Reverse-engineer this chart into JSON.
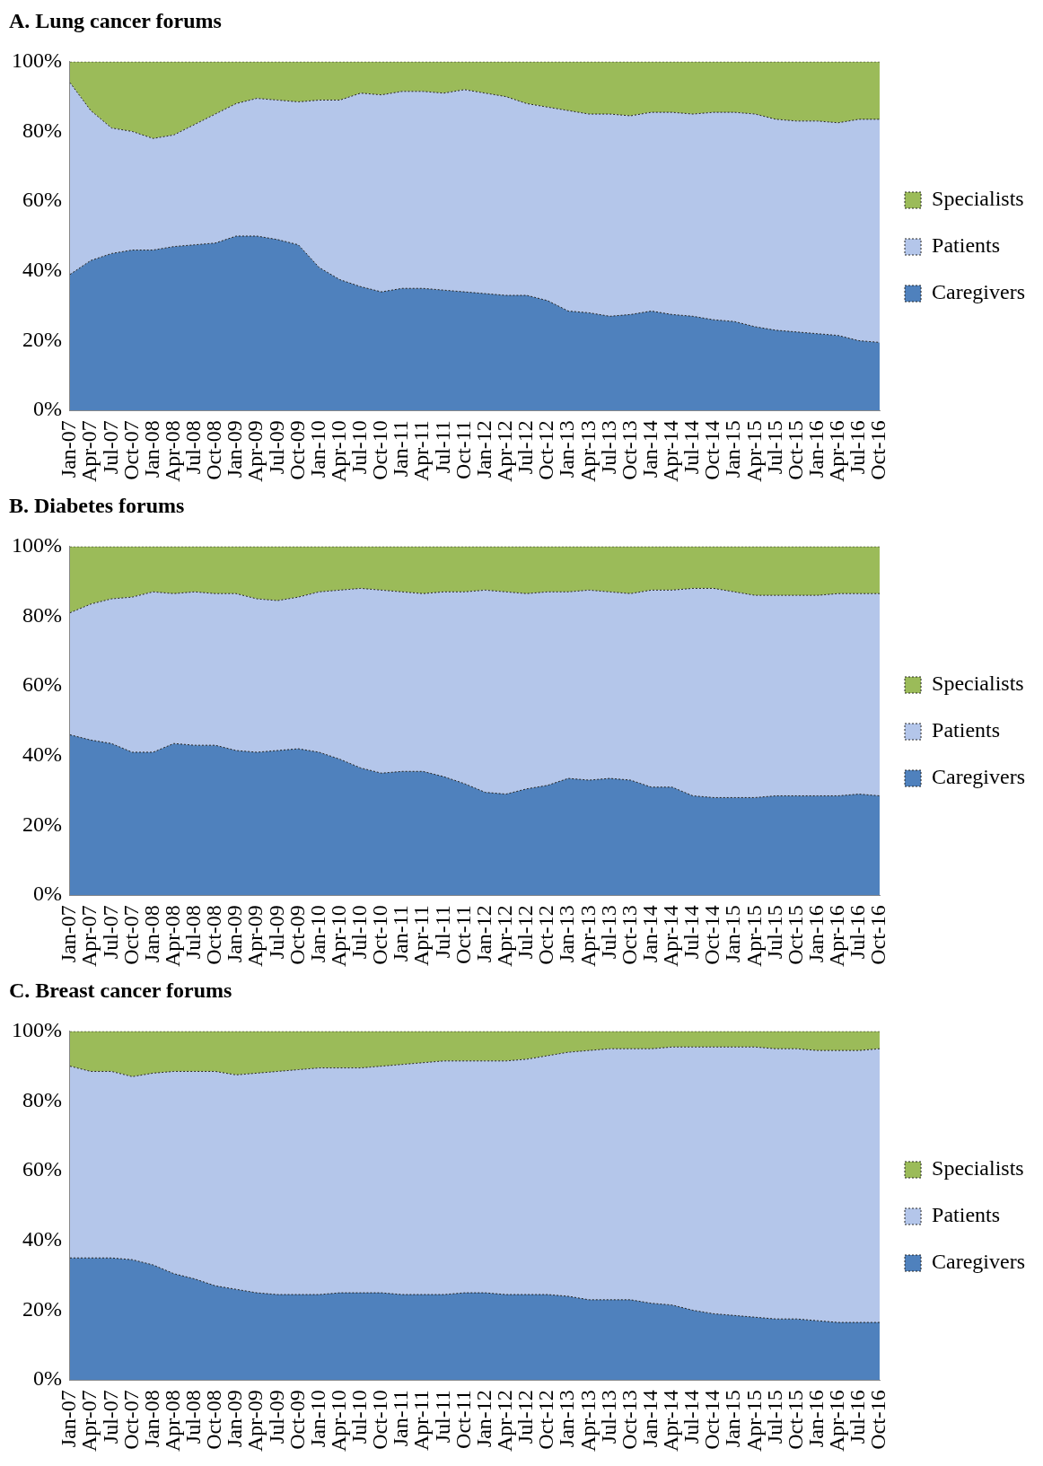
{
  "chart_data": [
    {
      "type": "area",
      "title": "A. Lung cancer forums",
      "stacked": true,
      "legend": "right",
      "categories": [
        "Jan-07",
        "Apr-07",
        "Jul-07",
        "Oct-07",
        "Jan-08",
        "Apr-08",
        "Jul-08",
        "Oct-08",
        "Jan-09",
        "Apr-09",
        "Jul-09",
        "Oct-09",
        "Jan-10",
        "Apr-10",
        "Jul-10",
        "Oct-10",
        "Jan-11",
        "Apr-11",
        "Jul-11",
        "Oct-11",
        "Jan-12",
        "Apr-12",
        "Jul-12",
        "Oct-12",
        "Jan-13",
        "Apr-13",
        "Jul-13",
        "Oct-13",
        "Jan-14",
        "Apr-14",
        "Jul-14",
        "Oct-14",
        "Jan-15",
        "Apr-15",
        "Jul-15",
        "Oct-15",
        "Jan-16",
        "Apr-16",
        "Jul-16",
        "Oct-16"
      ],
      "ylim": [
        0,
        100
      ],
      "yticks": [
        {
          "value": 0,
          "label": "0%"
        },
        {
          "value": 20,
          "label": "20%"
        },
        {
          "value": 40,
          "label": "40%"
        },
        {
          "value": 60,
          "label": "60%"
        },
        {
          "value": 80,
          "label": "80%"
        },
        {
          "value": 100,
          "label": "100%"
        }
      ],
      "series": [
        {
          "name": "Caregivers",
          "color": "#4f81bd",
          "values": [
            39,
            43,
            45,
            46,
            46,
            47,
            47.5,
            48,
            50,
            50,
            49,
            47.5,
            41,
            37.5,
            35.5,
            34,
            35,
            35,
            34.5,
            34,
            33.5,
            33,
            33,
            31.5,
            28.5,
            28,
            27,
            27.5,
            28.5,
            27.5,
            27,
            26,
            25.5,
            24,
            23,
            22.5,
            22,
            21.5,
            20,
            19.5
          ]
        },
        {
          "name": "Patients",
          "color": "#b4c6ea",
          "values": [
            55,
            43,
            36,
            34,
            32,
            32,
            34.5,
            37,
            38,
            39.5,
            40,
            41,
            48,
            51.5,
            55.5,
            56.5,
            56.5,
            56.5,
            56.5,
            58,
            57.5,
            57,
            55,
            55.5,
            57.5,
            57,
            58,
            57,
            57,
            58,
            58,
            59.5,
            60,
            61,
            60.5,
            60.5,
            61,
            61,
            63.5,
            64
          ]
        },
        {
          "name": "Specialists",
          "color": "#9bbb59",
          "values": [
            6,
            14,
            19,
            20,
            22,
            21,
            18,
            15,
            12,
            10.5,
            11,
            11.5,
            11,
            11,
            9,
            9.5,
            8.5,
            8.5,
            9,
            8,
            9,
            10,
            12,
            13,
            14,
            15,
            15,
            15.5,
            14.5,
            14.5,
            15,
            14.5,
            14.5,
            15,
            16.5,
            17,
            17,
            17.5,
            16.5,
            16.5
          ]
        }
      ]
    },
    {
      "type": "area",
      "title": "B. Diabetes forums",
      "stacked": true,
      "legend": "right",
      "categories": [
        "Jan-07",
        "Apr-07",
        "Jul-07",
        "Oct-07",
        "Jan-08",
        "Apr-08",
        "Jul-08",
        "Oct-08",
        "Jan-09",
        "Apr-09",
        "Jul-09",
        "Oct-09",
        "Jan-10",
        "Apr-10",
        "Jul-10",
        "Oct-10",
        "Jan-11",
        "Apr-11",
        "Jul-11",
        "Oct-11",
        "Jan-12",
        "Apr-12",
        "Jul-12",
        "Oct-12",
        "Jan-13",
        "Apr-13",
        "Jul-13",
        "Oct-13",
        "Jan-14",
        "Apr-14",
        "Jul-14",
        "Oct-14",
        "Jan-15",
        "Apr-15",
        "Jul-15",
        "Oct-15",
        "Jan-16",
        "Apr-16",
        "Jul-16",
        "Oct-16"
      ],
      "ylim": [
        0,
        100
      ],
      "yticks": [
        {
          "value": 0,
          "label": "0%"
        },
        {
          "value": 20,
          "label": "20%"
        },
        {
          "value": 40,
          "label": "40%"
        },
        {
          "value": 60,
          "label": "60%"
        },
        {
          "value": 80,
          "label": "80%"
        },
        {
          "value": 100,
          "label": "100%"
        }
      ],
      "series": [
        {
          "name": "Caregivers",
          "color": "#4f81bd",
          "values": [
            46,
            44.5,
            43.5,
            41,
            41,
            43.5,
            43,
            43,
            41.5,
            41,
            41.5,
            42,
            41,
            39,
            36.5,
            35,
            35.5,
            35.5,
            34,
            32,
            29.5,
            29,
            30.5,
            31.5,
            33.5,
            33,
            33.5,
            33,
            31,
            31,
            28.5,
            28,
            28,
            28,
            28.5,
            28.5,
            28.5,
            28.5,
            29,
            28.5
          ]
        },
        {
          "name": "Patients",
          "color": "#b4c6ea",
          "values": [
            35,
            39,
            41.5,
            44.5,
            46,
            43,
            44,
            43.5,
            45,
            44,
            43,
            43.5,
            46,
            48.5,
            51.5,
            52.5,
            51.5,
            51,
            53,
            55,
            58,
            58,
            56,
            55.5,
            53.5,
            54.5,
            53.5,
            53.5,
            56.5,
            56.5,
            59.5,
            60,
            59,
            58,
            57.5,
            57.5,
            57.5,
            58,
            57.5,
            58
          ]
        },
        {
          "name": "Specialists",
          "color": "#9bbb59",
          "values": [
            19,
            16.5,
            15,
            14.5,
            13,
            13.5,
            13,
            13.5,
            13.5,
            15,
            15.5,
            14.5,
            13,
            12.5,
            12,
            12.5,
            13,
            13.5,
            13,
            13,
            12.5,
            13,
            13.5,
            13,
            13,
            12.5,
            13,
            13.5,
            12.5,
            12.5,
            12,
            12,
            13,
            14,
            14,
            14,
            14,
            13.5,
            13.5,
            13.5
          ]
        }
      ]
    },
    {
      "type": "area",
      "title": "C. Breast cancer forums",
      "stacked": true,
      "legend": "right",
      "categories": [
        "Jan-07",
        "Apr-07",
        "Jul-07",
        "Oct-07",
        "Jan-08",
        "Apr-08",
        "Jul-08",
        "Oct-08",
        "Jan-09",
        "Apr-09",
        "Jul-09",
        "Oct-09",
        "Jan-10",
        "Apr-10",
        "Jul-10",
        "Oct-10",
        "Jan-11",
        "Apr-11",
        "Jul-11",
        "Oct-11",
        "Jan-12",
        "Apr-12",
        "Jul-12",
        "Oct-12",
        "Jan-13",
        "Apr-13",
        "Jul-13",
        "Oct-13",
        "Jan-14",
        "Apr-14",
        "Jul-14",
        "Oct-14",
        "Jan-15",
        "Apr-15",
        "Jul-15",
        "Oct-15",
        "Jan-16",
        "Apr-16",
        "Jul-16",
        "Oct-16"
      ],
      "ylim": [
        0,
        100
      ],
      "yticks": [
        {
          "value": 0,
          "label": "0%"
        },
        {
          "value": 20,
          "label": "20%"
        },
        {
          "value": 40,
          "label": "40%"
        },
        {
          "value": 60,
          "label": "60%"
        },
        {
          "value": 80,
          "label": "80%"
        },
        {
          "value": 100,
          "label": "100%"
        }
      ],
      "series": [
        {
          "name": "Caregivers",
          "color": "#4f81bd",
          "values": [
            35,
            35,
            35,
            34.5,
            33,
            30.5,
            29,
            27,
            26,
            25,
            24.5,
            24.5,
            24.5,
            25,
            25,
            25,
            24.5,
            24.5,
            24.5,
            25,
            25,
            24.5,
            24.5,
            24.5,
            24,
            23,
            23,
            23,
            22,
            21.5,
            20,
            19,
            18.5,
            18,
            17.5,
            17.5,
            17,
            16.5,
            16.5,
            16.5
          ]
        },
        {
          "name": "Patients",
          "color": "#b4c6ea",
          "values": [
            55,
            53.5,
            53.5,
            52.5,
            55,
            58,
            59.5,
            61.5,
            61.5,
            63,
            64,
            64.5,
            65,
            64.5,
            64.5,
            65,
            66,
            66.5,
            67,
            66.5,
            66.5,
            67,
            67.5,
            68.5,
            70,
            71.5,
            72,
            72,
            73,
            74,
            75.5,
            76.5,
            77,
            77.5,
            77.5,
            77.5,
            77.5,
            78,
            78,
            78.5
          ]
        },
        {
          "name": "Specialists",
          "color": "#9bbb59",
          "values": [
            10,
            11.5,
            11.5,
            13,
            12,
            11.5,
            11.5,
            11.5,
            12.5,
            12,
            11.5,
            11,
            10.5,
            10.5,
            10.5,
            10,
            9.5,
            9,
            8.5,
            8.5,
            8.5,
            8.5,
            8,
            7,
            6,
            5.5,
            5,
            5,
            5,
            4.5,
            4.5,
            4.5,
            4.5,
            4.5,
            5,
            5,
            5.5,
            5.5,
            5.5,
            5
          ]
        }
      ]
    }
  ]
}
